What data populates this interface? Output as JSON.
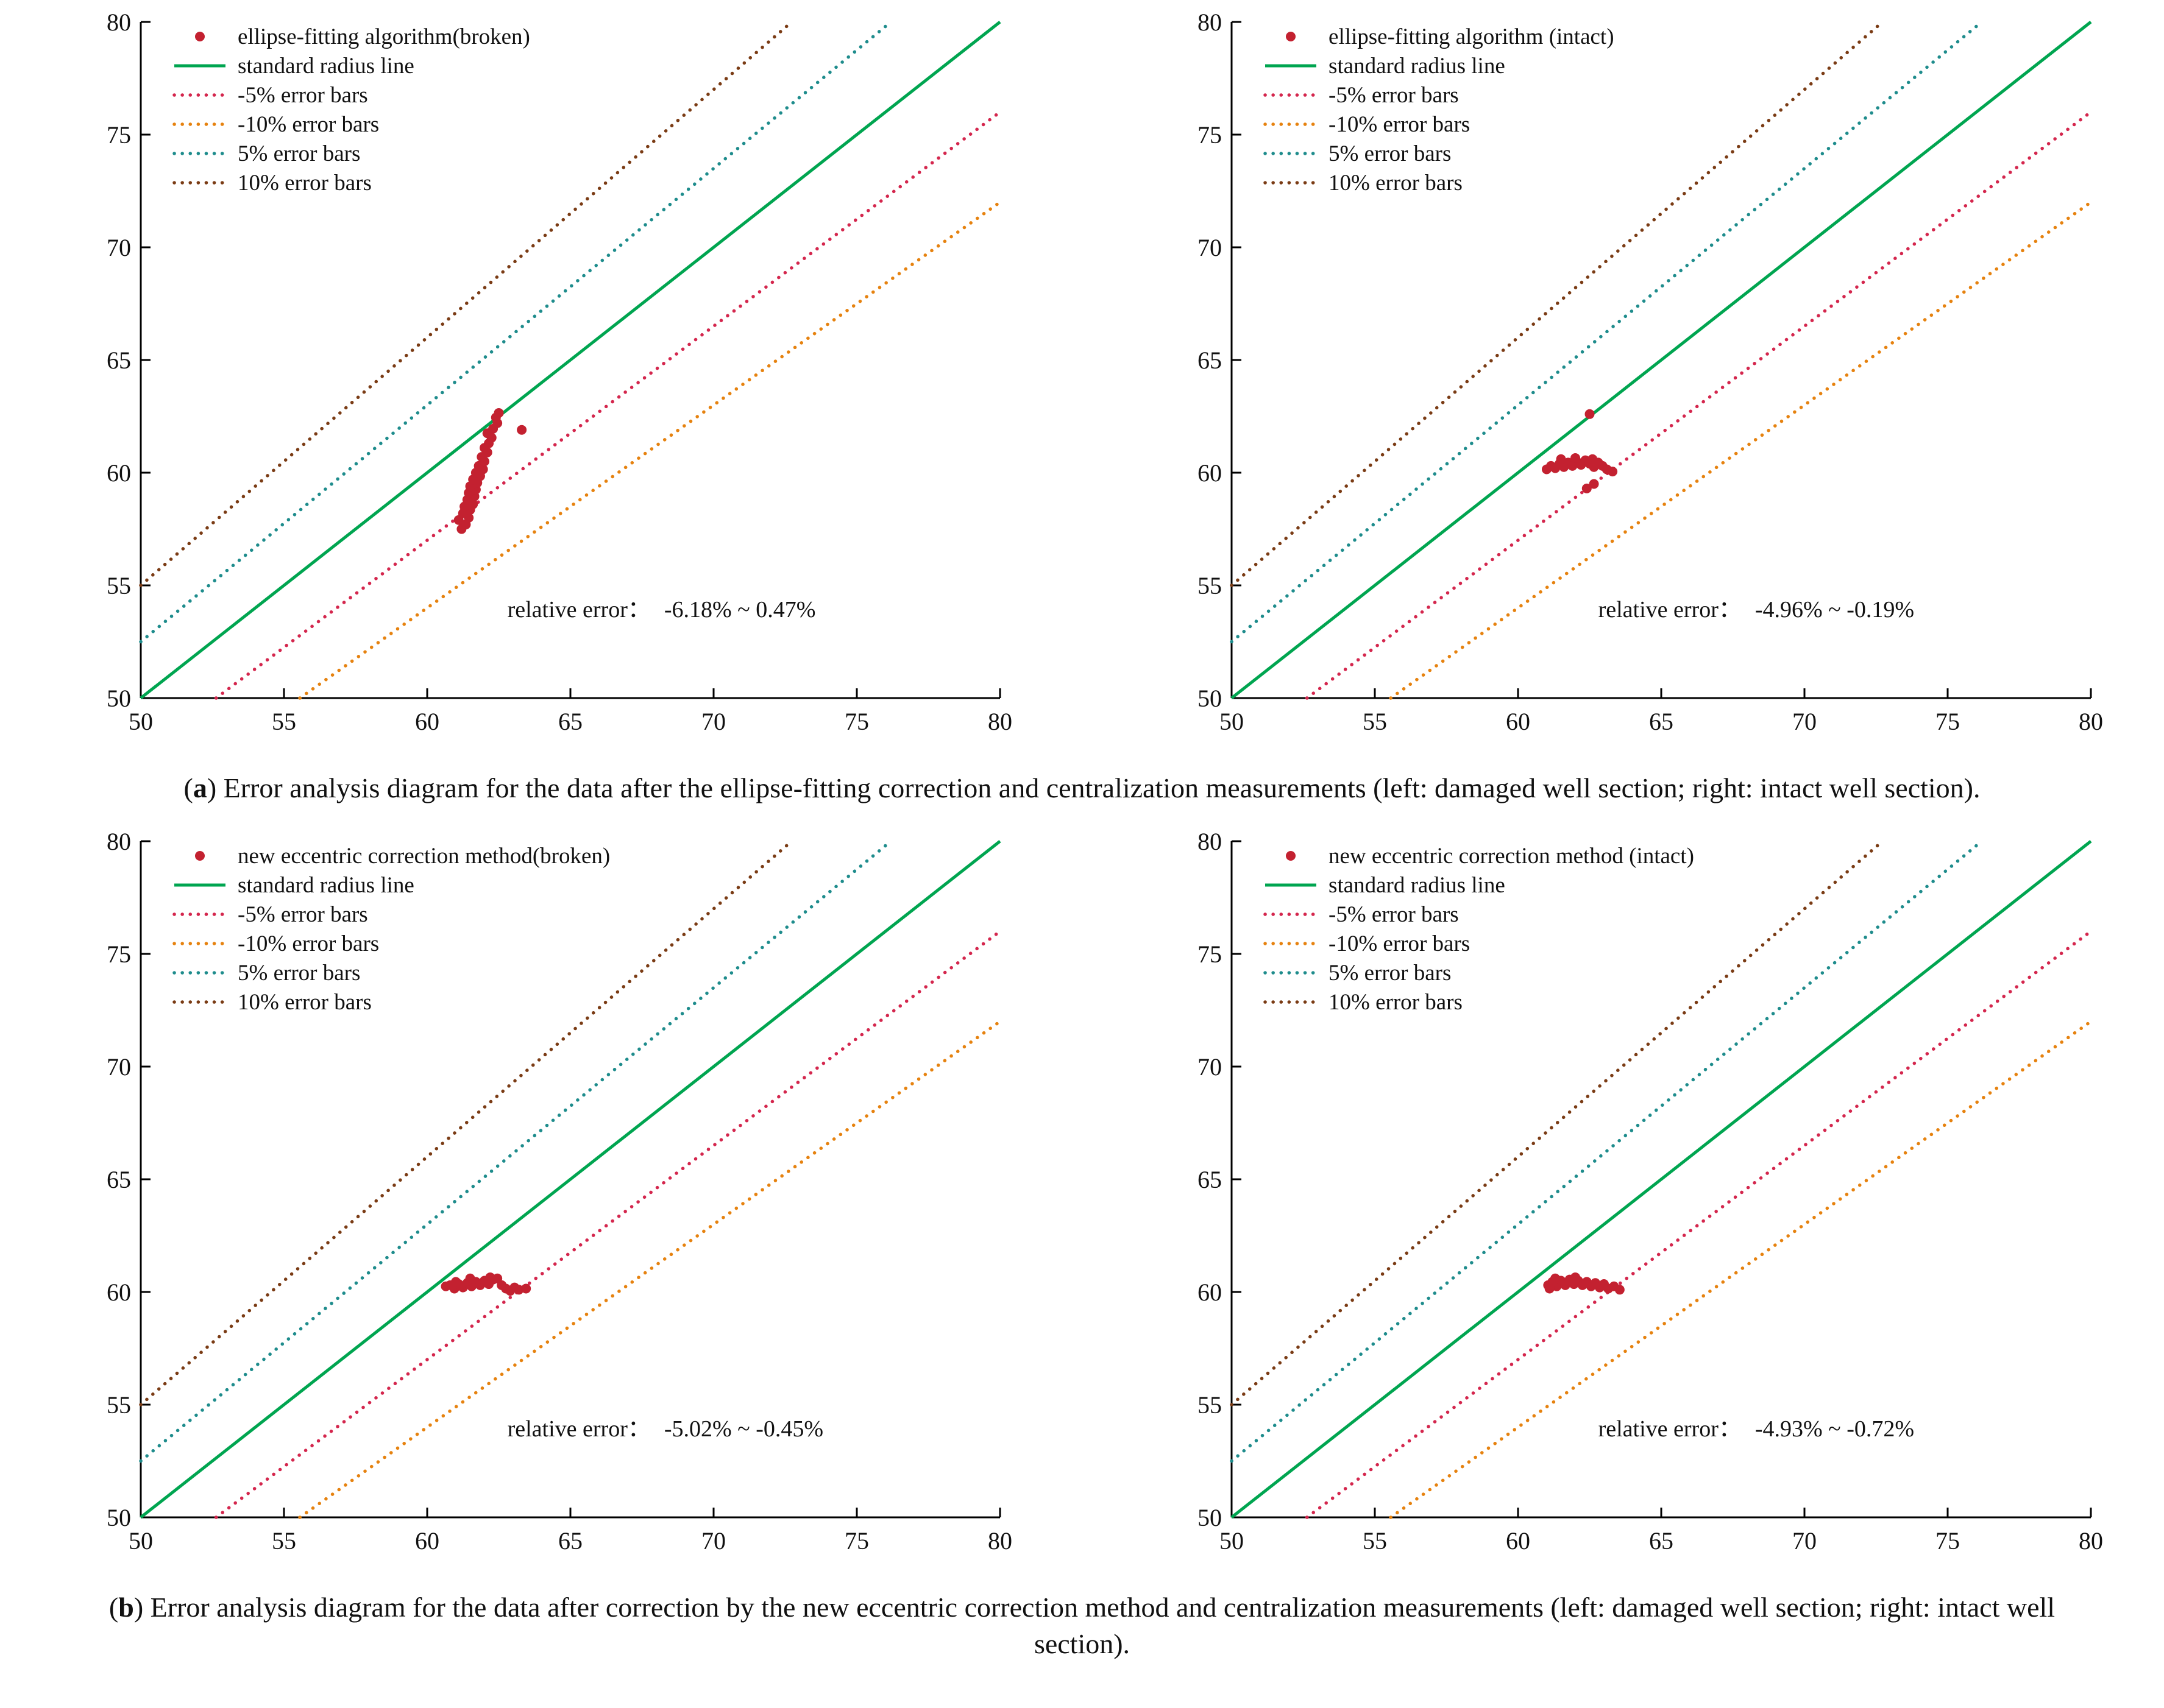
{
  "page": {
    "background": "#ffffff"
  },
  "captions": {
    "a": {
      "label": "a",
      "text": "Error analysis diagram for the data after the ellipse-fitting correction and centralization measurements (left: damaged well section; right: intact well section)."
    },
    "b": {
      "label": "b",
      "text": "Error analysis diagram for the data after correction by the new eccentric correction method and centralization measurements (left: damaged well section; right: intact well section)."
    }
  },
  "chart_data": [
    {
      "type": "scatter",
      "position": "top-left",
      "legend": [
        "ellipse-fitting algorithm(broken)",
        "standard radius line",
        "-5% error bars",
        "-10% error bars",
        "5% error bars",
        "10% error bars"
      ],
      "xlim": [
        50,
        80
      ],
      "ylim": [
        50,
        80
      ],
      "ticks": [
        50,
        55,
        60,
        65,
        70,
        75,
        80
      ],
      "grid": false,
      "point_color": "#c32130",
      "lines": [
        {
          "label": "standard radius line",
          "slope": 1.0,
          "style": "solid",
          "color": "#00a550"
        },
        {
          "label": "-5% error bars",
          "slope": 0.95,
          "style": "dotted",
          "color": "#d4264d"
        },
        {
          "label": "-10% error bars",
          "slope": 0.9,
          "style": "dotted",
          "color": "#e6820f"
        },
        {
          "label": "5% error bars",
          "slope": 1.05,
          "style": "dotted",
          "color": "#1e8c8c"
        },
        {
          "label": "10% error bars",
          "slope": 1.1,
          "style": "dotted",
          "color": "#7a3b14"
        }
      ],
      "relative_error_label": "relative error：",
      "relative_error_value": "-6.18% ~ 0.47%",
      "points": [
        [
          61.2,
          57.5
        ],
        [
          61.35,
          57.7
        ],
        [
          61.1,
          57.9
        ],
        [
          61.45,
          58.0
        ],
        [
          61.25,
          58.2
        ],
        [
          61.5,
          58.35
        ],
        [
          61.3,
          58.5
        ],
        [
          61.6,
          58.6
        ],
        [
          61.4,
          58.8
        ],
        [
          61.65,
          58.95
        ],
        [
          61.45,
          59.1
        ],
        [
          61.7,
          59.25
        ],
        [
          61.5,
          59.4
        ],
        [
          61.75,
          59.55
        ],
        [
          61.6,
          59.7
        ],
        [
          61.85,
          59.85
        ],
        [
          61.7,
          60.0
        ],
        [
          61.95,
          60.15
        ],
        [
          61.8,
          60.3
        ],
        [
          62.0,
          60.5
        ],
        [
          61.9,
          60.7
        ],
        [
          62.1,
          60.9
        ],
        [
          62.0,
          61.1
        ],
        [
          62.15,
          61.3
        ],
        [
          62.25,
          61.55
        ],
        [
          62.1,
          61.75
        ],
        [
          62.3,
          61.95
        ],
        [
          62.45,
          62.2
        ],
        [
          62.4,
          62.45
        ],
        [
          62.5,
          62.65
        ],
        [
          63.3,
          61.9
        ]
      ]
    },
    {
      "type": "scatter",
      "position": "top-right",
      "legend": [
        "ellipse-fitting algorithm (intact)",
        "standard radius line",
        "-5% error bars",
        "-10% error bars",
        "5% error bars",
        "10% error bars"
      ],
      "xlim": [
        50,
        80
      ],
      "ylim": [
        50,
        80
      ],
      "ticks": [
        50,
        55,
        60,
        65,
        70,
        75,
        80
      ],
      "grid": false,
      "point_color": "#c32130",
      "lines": [
        {
          "label": "standard radius line",
          "slope": 1.0,
          "style": "solid",
          "color": "#00a550"
        },
        {
          "label": "-5% error bars",
          "slope": 0.95,
          "style": "dotted",
          "color": "#d4264d"
        },
        {
          "label": "-10% error bars",
          "slope": 0.9,
          "style": "dotted",
          "color": "#e6820f"
        },
        {
          "label": "5% error bars",
          "slope": 1.05,
          "style": "dotted",
          "color": "#1e8c8c"
        },
        {
          "label": "10% error bars",
          "slope": 1.1,
          "style": "dotted",
          "color": "#7a3b14"
        }
      ],
      "relative_error_label": "relative error：",
      "relative_error_value": "-4.96% ~ -0.19%",
      "points": [
        [
          61.0,
          60.15
        ],
        [
          61.15,
          60.3
        ],
        [
          61.3,
          60.2
        ],
        [
          61.45,
          60.4
        ],
        [
          61.6,
          60.25
        ],
        [
          61.75,
          60.45
        ],
        [
          61.9,
          60.3
        ],
        [
          62.05,
          60.5
        ],
        [
          62.2,
          60.35
        ],
        [
          62.35,
          60.55
        ],
        [
          62.5,
          60.4
        ],
        [
          62.65,
          60.25
        ],
        [
          62.8,
          60.45
        ],
        [
          62.95,
          60.3
        ],
        [
          63.1,
          60.15
        ],
        [
          63.3,
          60.05
        ],
        [
          61.5,
          60.6
        ],
        [
          62.0,
          60.65
        ],
        [
          62.6,
          60.6
        ],
        [
          62.4,
          59.3
        ],
        [
          62.65,
          59.5
        ],
        [
          62.5,
          62.6
        ]
      ]
    },
    {
      "type": "scatter",
      "position": "bottom-left",
      "legend": [
        "new eccentric correction method(broken)",
        "standard radius line",
        "-5% error bars",
        "-10% error bars",
        "5% error bars",
        "10% error bars"
      ],
      "xlim": [
        50,
        80
      ],
      "ylim": [
        50,
        80
      ],
      "ticks": [
        50,
        55,
        60,
        65,
        70,
        75,
        80
      ],
      "grid": false,
      "point_color": "#c32130",
      "lines": [
        {
          "label": "standard radius line",
          "slope": 1.0,
          "style": "solid",
          "color": "#00a550"
        },
        {
          "label": "-5% error bars",
          "slope": 0.95,
          "style": "dotted",
          "color": "#d4264d"
        },
        {
          "label": "-10% error bars",
          "slope": 0.9,
          "style": "dotted",
          "color": "#e6820f"
        },
        {
          "label": "5% error bars",
          "slope": 1.05,
          "style": "dotted",
          "color": "#1e8c8c"
        },
        {
          "label": "10% error bars",
          "slope": 1.1,
          "style": "dotted",
          "color": "#7a3b14"
        }
      ],
      "relative_error_label": "relative error：",
      "relative_error_value": "-5.02% ~ -0.45%",
      "points": [
        [
          60.65,
          60.25
        ],
        [
          60.8,
          60.3
        ],
        [
          60.95,
          60.15
        ],
        [
          61.1,
          60.35
        ],
        [
          61.25,
          60.2
        ],
        [
          61.4,
          60.4
        ],
        [
          61.55,
          60.25
        ],
        [
          61.7,
          60.45
        ],
        [
          61.85,
          60.3
        ],
        [
          62.0,
          60.5
        ],
        [
          62.15,
          60.35
        ],
        [
          62.3,
          60.55
        ],
        [
          62.45,
          60.6
        ],
        [
          62.6,
          60.3
        ],
        [
          62.75,
          60.15
        ],
        [
          62.9,
          60.05
        ],
        [
          63.05,
          60.2
        ],
        [
          63.2,
          60.1
        ],
        [
          63.45,
          60.15
        ],
        [
          61.5,
          60.6
        ],
        [
          62.2,
          60.65
        ],
        [
          61.0,
          60.45
        ]
      ]
    },
    {
      "type": "scatter",
      "position": "bottom-right",
      "legend": [
        "new eccentric correction method (intact)",
        "standard radius line",
        "-5% error bars",
        "-10% error bars",
        "5% error bars",
        "10% error bars"
      ],
      "xlim": [
        50,
        80
      ],
      "ylim": [
        50,
        80
      ],
      "ticks": [
        50,
        55,
        60,
        65,
        70,
        75,
        80
      ],
      "grid": false,
      "point_color": "#c32130",
      "lines": [
        {
          "label": "standard radius line",
          "slope": 1.0,
          "style": "solid",
          "color": "#00a550"
        },
        {
          "label": "-5% error bars",
          "slope": 0.95,
          "style": "dotted",
          "color": "#d4264d"
        },
        {
          "label": "-10% error bars",
          "slope": 0.9,
          "style": "dotted",
          "color": "#e6820f"
        },
        {
          "label": "5% error bars",
          "slope": 1.05,
          "style": "dotted",
          "color": "#1e8c8c"
        },
        {
          "label": "10% error bars",
          "slope": 1.1,
          "style": "dotted",
          "color": "#7a3b14"
        }
      ],
      "relative_error_label": "relative error：",
      "relative_error_value": "-4.93% ~ -0.72%",
      "points": [
        [
          61.05,
          60.3
        ],
        [
          61.2,
          60.45
        ],
        [
          61.35,
          60.25
        ],
        [
          61.5,
          60.5
        ],
        [
          61.65,
          60.3
        ],
        [
          61.8,
          60.55
        ],
        [
          61.95,
          60.35
        ],
        [
          62.1,
          60.5
        ],
        [
          62.25,
          60.3
        ],
        [
          62.4,
          60.45
        ],
        [
          62.55,
          60.25
        ],
        [
          62.7,
          60.4
        ],
        [
          62.85,
          60.2
        ],
        [
          63.0,
          60.35
        ],
        [
          63.15,
          60.15
        ],
        [
          63.35,
          60.25
        ],
        [
          63.55,
          60.1
        ],
        [
          61.3,
          60.6
        ],
        [
          62.0,
          60.65
        ],
        [
          61.1,
          60.15
        ]
      ]
    }
  ]
}
